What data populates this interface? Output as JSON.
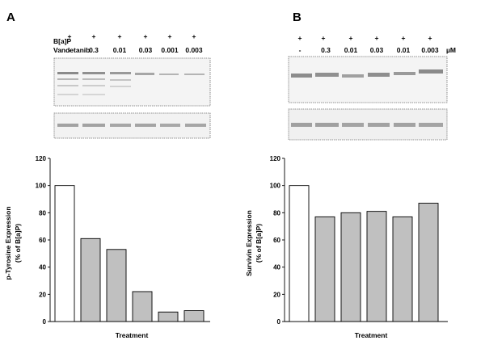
{
  "panels": {
    "A": {
      "letter": "A",
      "row1_label": "B[a]P",
      "row2_label": "Vandetanib",
      "row1_values": [
        "+",
        "+",
        "+",
        "+",
        "+",
        "+"
      ],
      "row2_values": [
        "-",
        "0.3",
        "0.01",
        "0.03",
        "0.001",
        "0.003"
      ]
    },
    "B": {
      "letter": "B",
      "row1_values": [
        "+",
        "+",
        "+",
        "+",
        "+",
        "+"
      ],
      "row2_values": [
        "-",
        "0.3",
        "0.01",
        "0.03",
        "0.01",
        "0.003"
      ],
      "unit": "µM"
    }
  },
  "chart_data": [
    {
      "type": "bar",
      "title": "",
      "xlabel": "Treatment",
      "ylabel_line1": "p-Tyrosine Expression",
      "ylabel_line2": "(% of B[a]P)",
      "ylim": [
        0,
        120
      ],
      "yticks": [
        0,
        20,
        40,
        60,
        80,
        100,
        120
      ],
      "values": [
        100,
        61,
        53,
        22,
        7,
        8
      ],
      "colors": [
        "#ffffff",
        "#c0c0c0",
        "#c0c0c0",
        "#c0c0c0",
        "#c0c0c0",
        "#c0c0c0"
      ],
      "grid": false
    },
    {
      "type": "bar",
      "title": "",
      "xlabel": "Treatment",
      "ylabel_line1": "Survivin Expression",
      "ylabel_line2": "(% of B[a]P)",
      "ylim": [
        0,
        120
      ],
      "yticks": [
        0,
        20,
        40,
        60,
        80,
        100,
        120
      ],
      "values": [
        100,
        77,
        80,
        81,
        77,
        87
      ],
      "colors": [
        "#ffffff",
        "#c0c0c0",
        "#c0c0c0",
        "#c0c0c0",
        "#c0c0c0",
        "#c0c0c0"
      ],
      "grid": false
    }
  ]
}
